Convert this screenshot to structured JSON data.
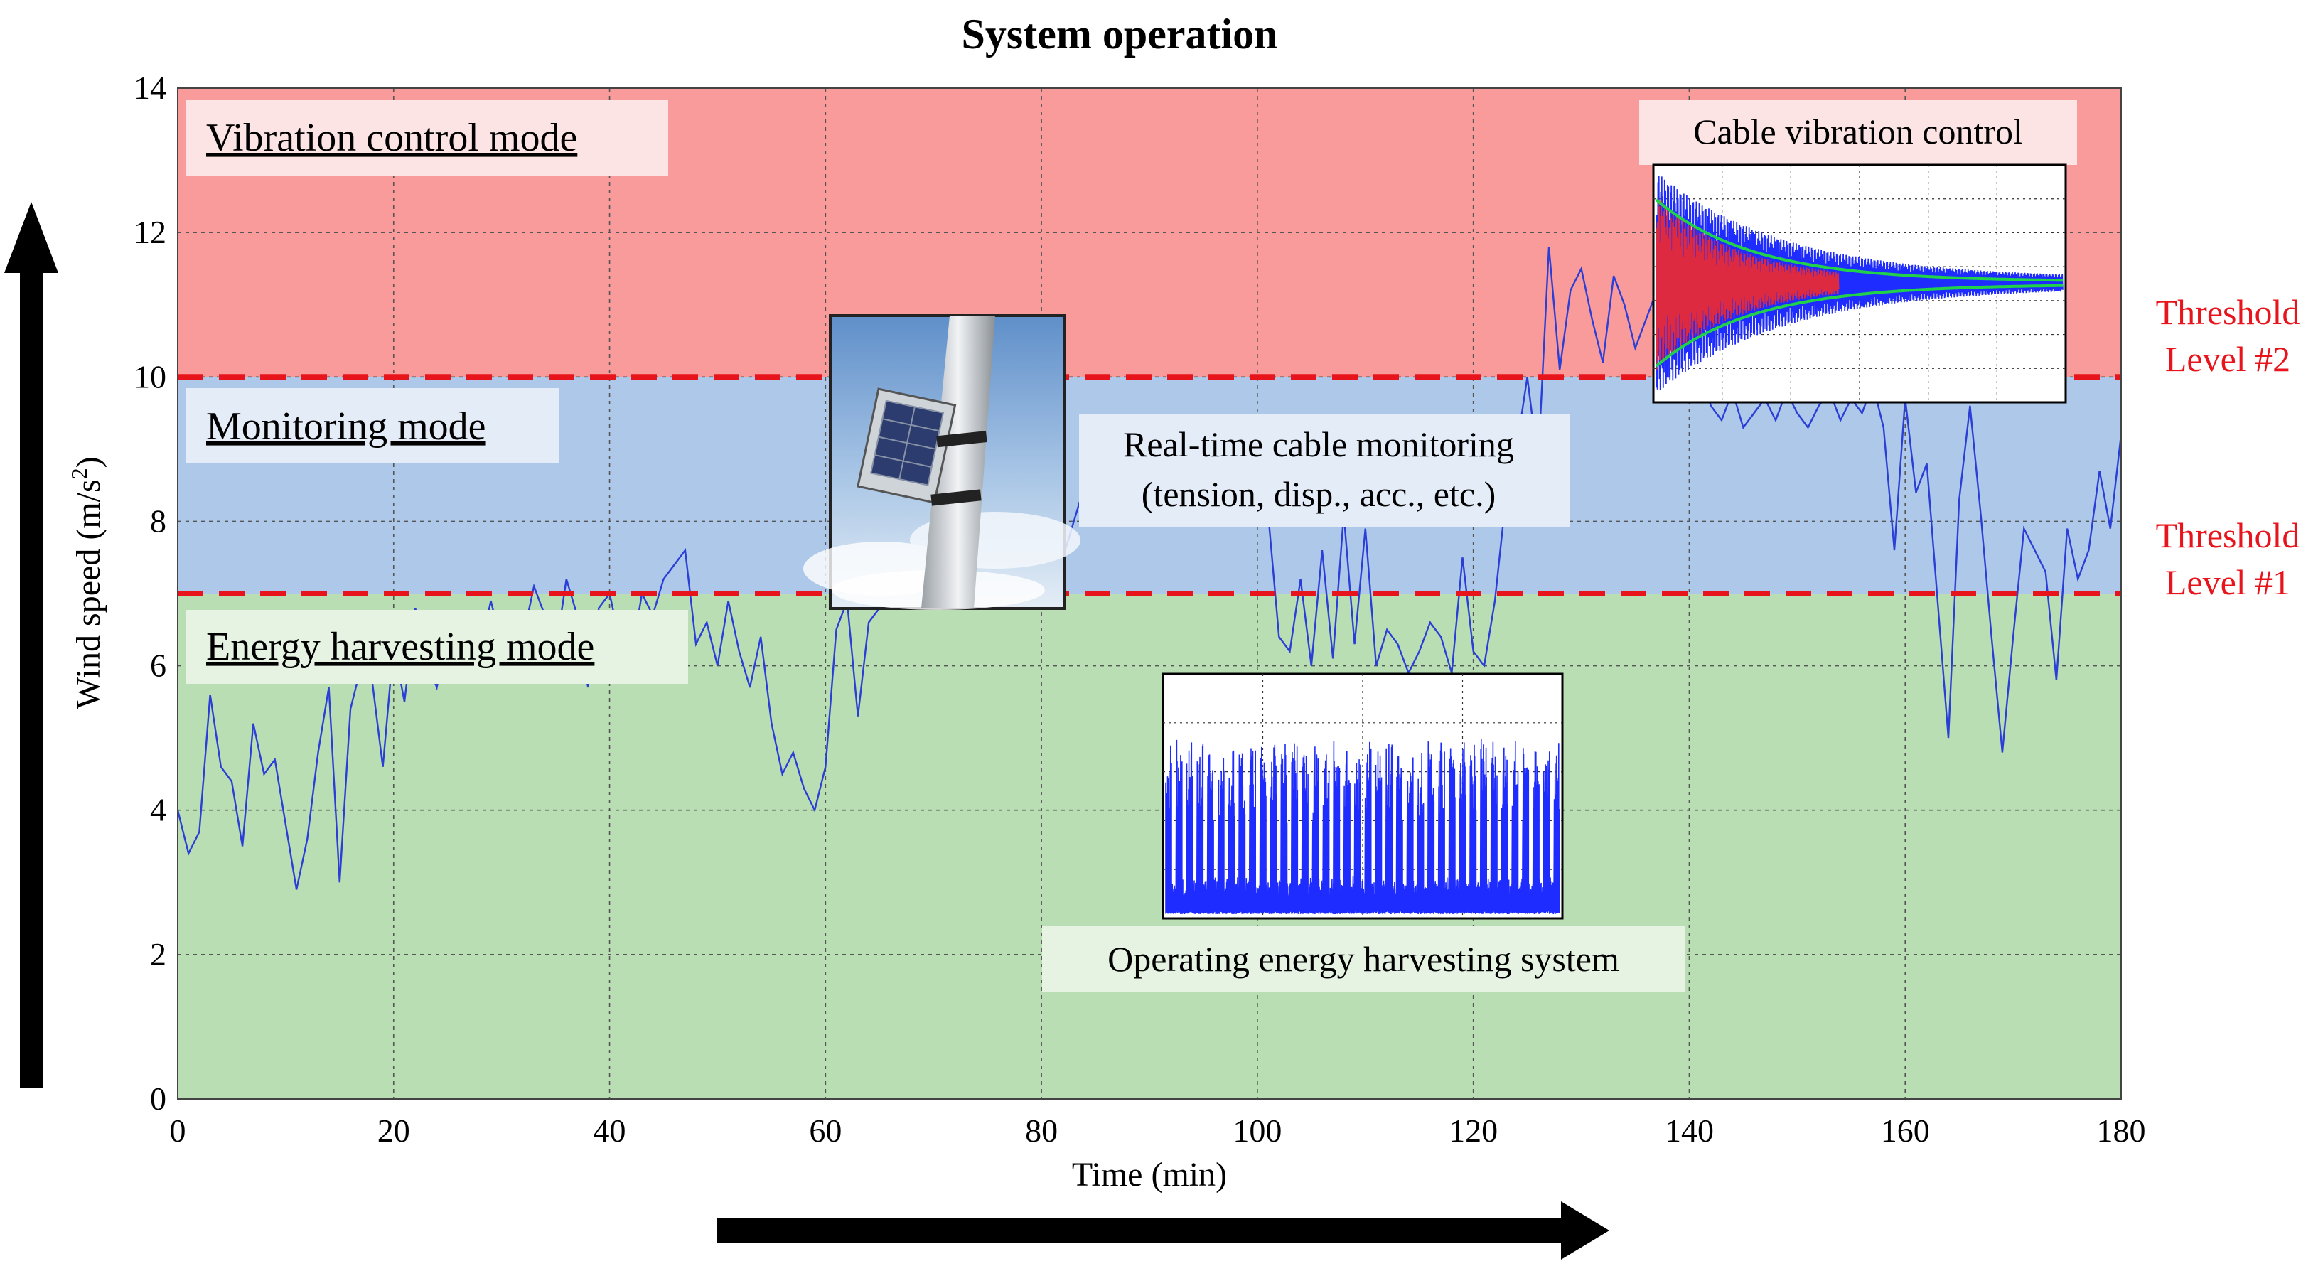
{
  "chart_data": {
    "type": "line",
    "title": "System operation",
    "xlabel": "Time (min)",
    "ylabel": "Wind speed (m/s²)",
    "ylabel_main": "Wind speed (m/s",
    "ylabel_sup": "2",
    "ylabel_end": ")",
    "xlim": [
      0,
      180
    ],
    "ylim": [
      0,
      14
    ],
    "x_ticks": [
      "0",
      "20",
      "40",
      "60",
      "80",
      "100",
      "120",
      "140",
      "160",
      "180"
    ],
    "y_ticks": [
      "0",
      "2",
      "4",
      "6",
      "8",
      "10",
      "12",
      "14"
    ],
    "grid": true,
    "series_color": "#2b3fd6",
    "x": [
      0,
      1,
      2,
      3,
      4,
      5,
      6,
      7,
      8,
      9,
      10,
      11,
      12,
      13,
      14,
      15,
      16,
      17,
      18,
      19,
      20,
      21,
      22,
      23,
      24,
      25,
      26,
      27,
      28,
      29,
      30,
      31,
      32,
      33,
      34,
      35,
      36,
      37,
      38,
      39,
      40,
      41,
      42,
      43,
      44,
      45,
      46,
      47,
      48,
      49,
      50,
      51,
      52,
      53,
      54,
      55,
      56,
      57,
      58,
      59,
      60,
      61,
      62,
      63,
      64,
      65,
      66,
      67,
      68,
      69,
      70,
      71,
      72,
      73,
      74,
      75,
      76,
      77,
      78,
      79,
      80,
      81,
      82,
      83,
      84,
      85,
      86,
      87,
      88,
      89,
      90,
      91,
      92,
      93,
      94,
      95,
      96,
      97,
      98,
      99,
      100,
      101,
      102,
      103,
      104,
      105,
      106,
      107,
      108,
      109,
      110,
      111,
      112,
      113,
      114,
      115,
      116,
      117,
      118,
      119,
      120,
      121,
      122,
      123,
      124,
      125,
      126,
      127,
      128,
      129,
      130,
      131,
      132,
      133,
      134,
      135,
      136,
      137,
      138,
      139,
      140,
      141,
      142,
      143,
      144,
      145,
      146,
      147,
      148,
      149,
      150,
      151,
      152,
      153,
      154,
      155,
      156,
      157,
      158,
      159,
      160,
      161,
      162,
      163,
      164,
      165,
      166,
      167,
      168,
      169,
      170,
      171,
      172,
      173,
      174,
      175,
      176,
      177,
      178,
      179,
      180
    ],
    "values": [
      4.0,
      3.4,
      3.7,
      5.6,
      4.6,
      4.4,
      3.5,
      5.2,
      4.5,
      4.7,
      3.8,
      2.9,
      3.6,
      4.8,
      5.7,
      3.0,
      5.4,
      6.0,
      5.8,
      4.6,
      6.3,
      5.5,
      6.8,
      6.1,
      5.7,
      6.5,
      6.0,
      6.6,
      6.2,
      6.9,
      6.3,
      6.7,
      6.4,
      7.1,
      6.7,
      6.2,
      7.2,
      6.7,
      5.7,
      6.8,
      7.0,
      6.3,
      6.1,
      7.0,
      6.7,
      7.2,
      7.4,
      7.6,
      6.3,
      6.6,
      6.0,
      6.9,
      6.2,
      5.7,
      6.4,
      5.2,
      4.5,
      4.8,
      4.3,
      4.0,
      4.6,
      6.5,
      6.9,
      5.3,
      6.6,
      6.8,
      7.4,
      7.8,
      8.1,
      8.3,
      8.5,
      8.2,
      8.7,
      8.4,
      8.9,
      8.5,
      8.6,
      8.8,
      8.7,
      9.1,
      8.8,
      8.3,
      7.5,
      8.0,
      8.5,
      8.9,
      8.6,
      8.8,
      8.2,
      8.7,
      8.5,
      8.9,
      8.4,
      8.7,
      8.6,
      8.8,
      8.4,
      8.6,
      8.3,
      8.7,
      8.5,
      8.1,
      6.4,
      6.2,
      7.2,
      6.0,
      7.6,
      6.1,
      8.1,
      6.3,
      7.9,
      6.0,
      6.5,
      6.3,
      5.9,
      6.2,
      6.6,
      6.4,
      5.9,
      7.5,
      6.2,
      6.0,
      6.9,
      8.3,
      9.0,
      10.0,
      8.8,
      11.8,
      10.1,
      11.2,
      11.5,
      10.8,
      10.2,
      11.4,
      11.0,
      10.4,
      10.8,
      11.2,
      10.7,
      10.3,
      9.8,
      10.1,
      9.6,
      9.4,
      9.8,
      9.3,
      9.5,
      9.7,
      9.4,
      9.8,
      9.5,
      9.3,
      9.6,
      9.8,
      9.4,
      9.7,
      9.5,
      9.9,
      9.3,
      7.6,
      9.7,
      8.4,
      8.8,
      6.9,
      5.0,
      8.3,
      9.6,
      8.1,
      6.4,
      4.8,
      6.4,
      7.9,
      7.6,
      7.3,
      5.8,
      7.9,
      7.2,
      7.6,
      8.7,
      7.9,
      9.2
    ],
    "bands": [
      {
        "label": "Energy harvesting mode",
        "from": 0,
        "to": 7,
        "color": "#b9deb3"
      },
      {
        "label": "Monitoring mode",
        "from": 7,
        "to": 10,
        "color": "#aec8ea"
      },
      {
        "label": "Vibration control mode",
        "from": 10,
        "to": 14,
        "color": "#f99a9b"
      }
    ],
    "thresholds": [
      {
        "value": 7,
        "label_line1": "Threshold",
        "label_line2": "Level #1"
      },
      {
        "value": 10,
        "label_line1": "Threshold",
        "label_line2": "Level #2"
      }
    ],
    "threshold_color": "#e8141b",
    "annotations": {
      "monitoring": {
        "line1": "Real-time cable monitoring",
        "line2": "(tension, disp., acc., etc.)"
      },
      "vibration": "Cable vibration control",
      "harvesting": "Operating energy harvesting system"
    }
  }
}
